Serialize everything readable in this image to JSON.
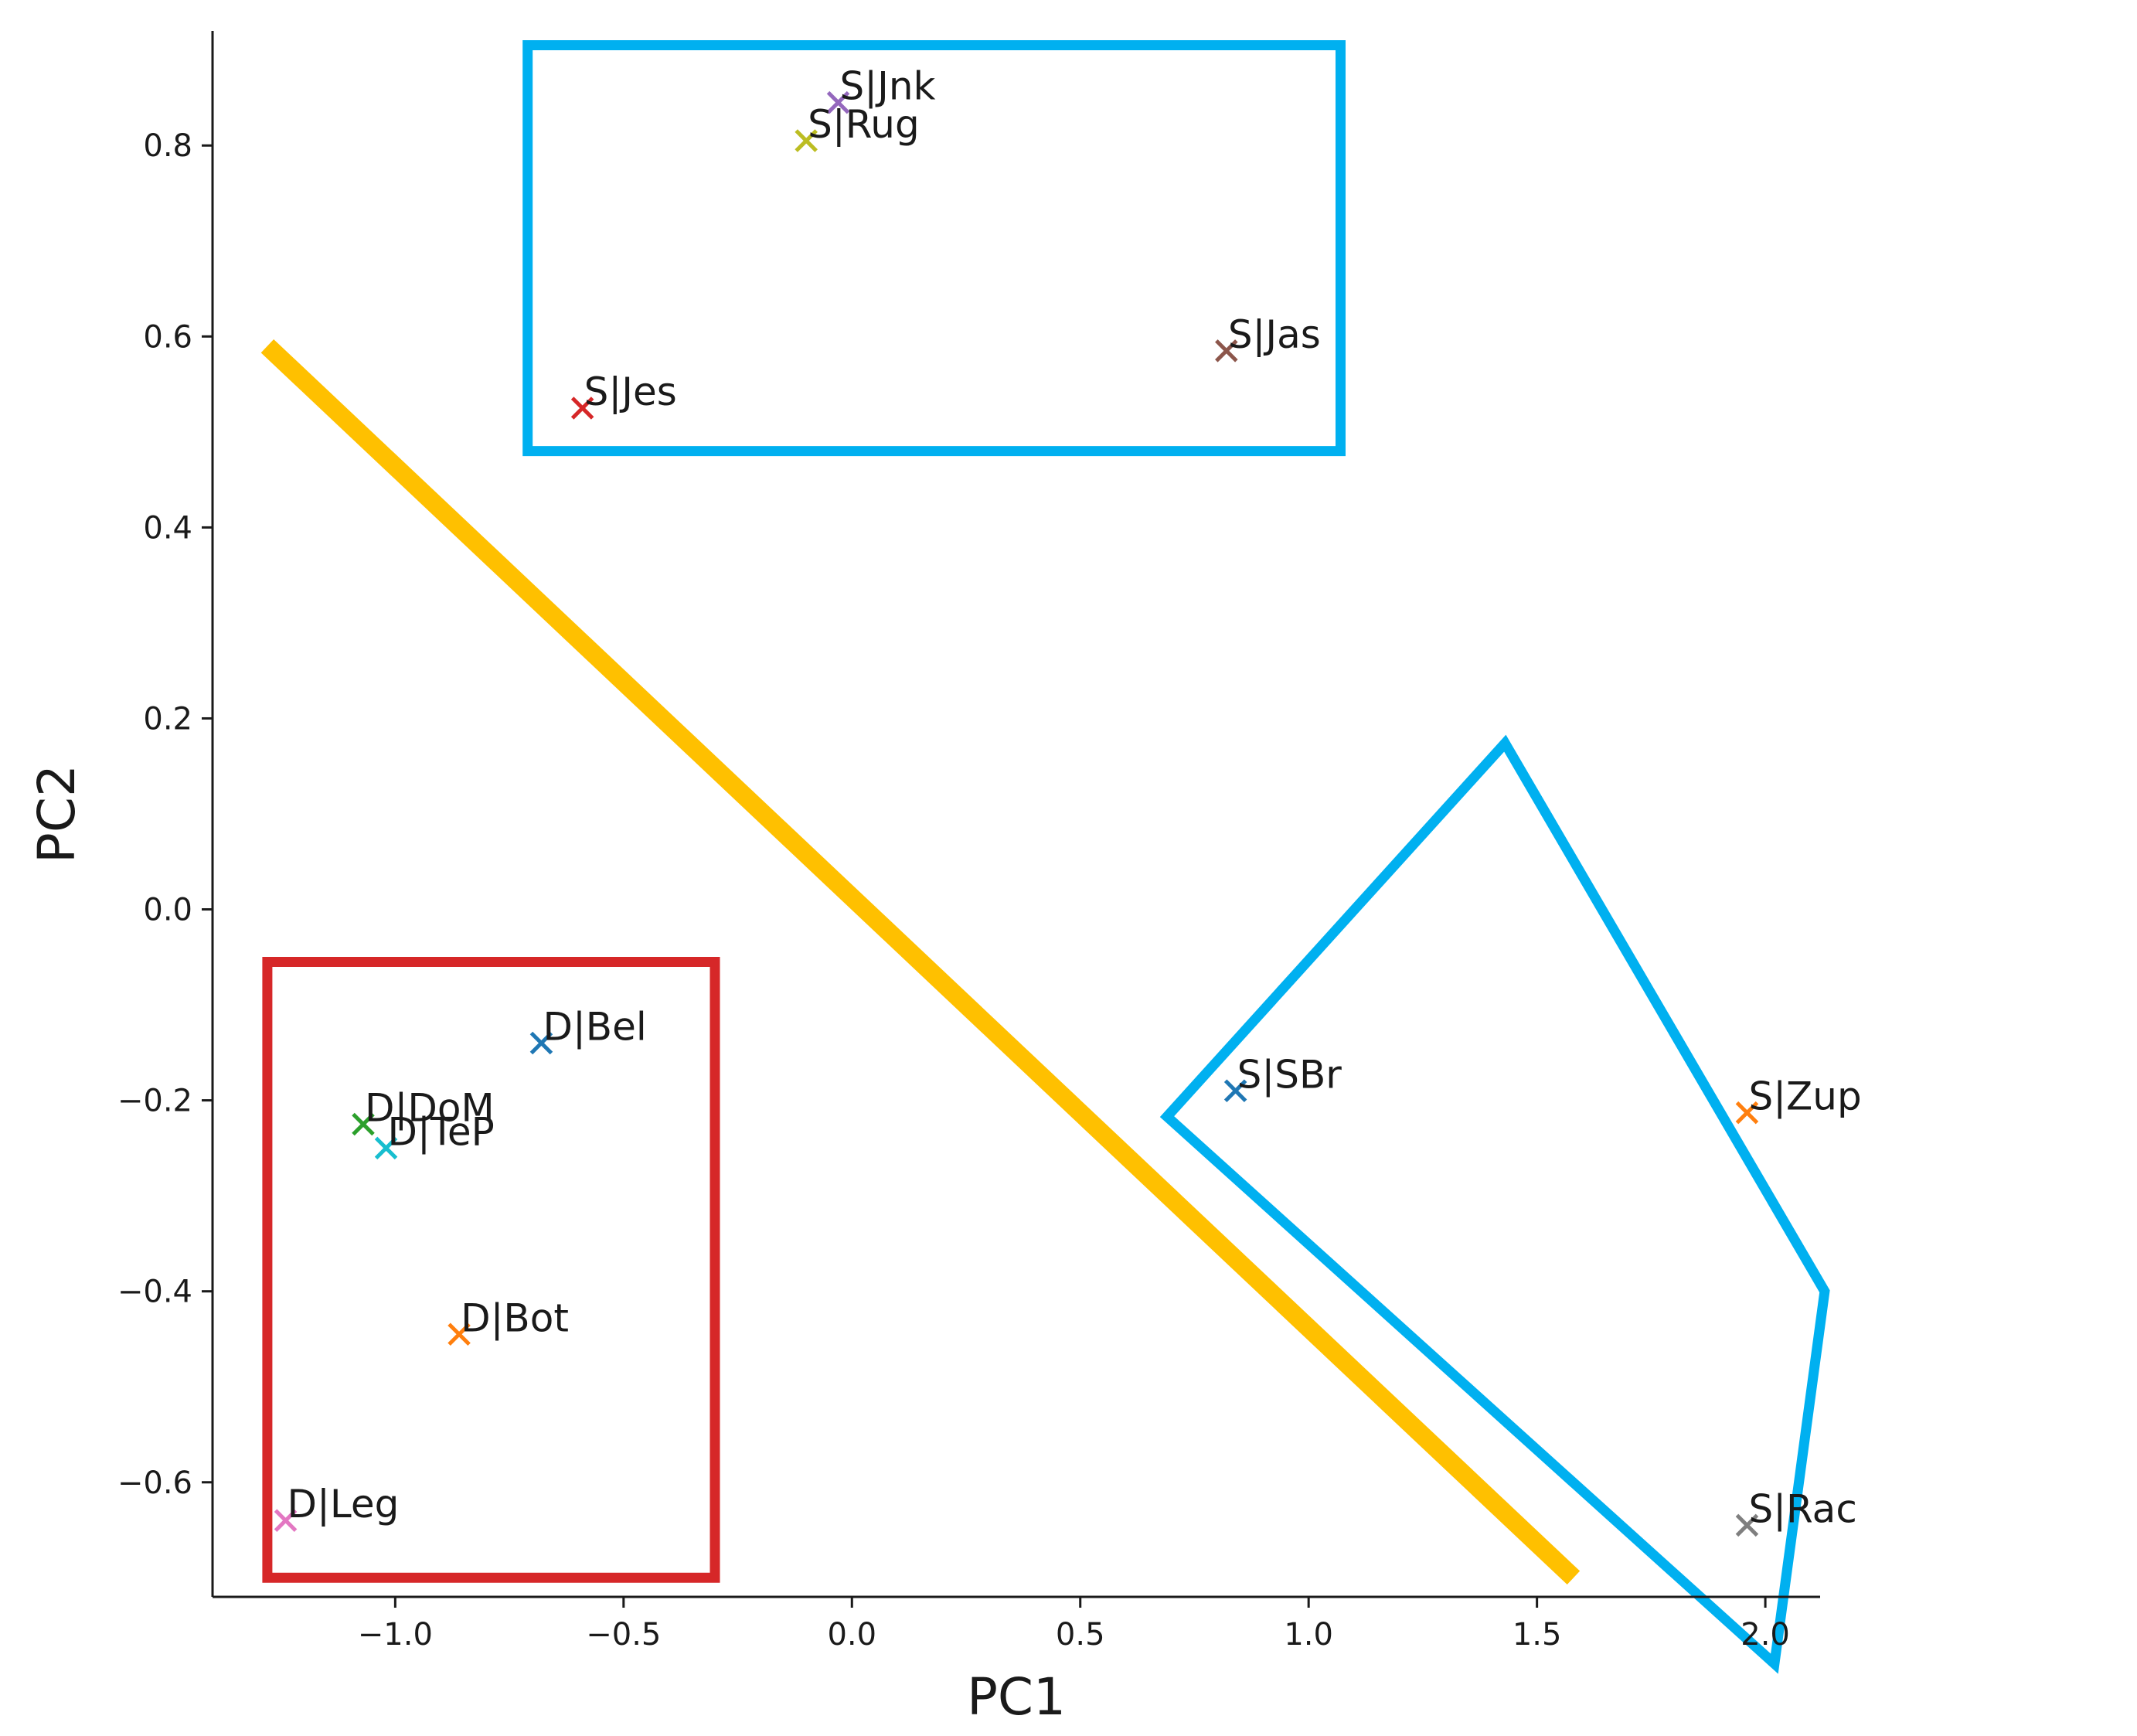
{
  "chart_data": {
    "type": "scatter",
    "title": "",
    "xlabel": "PC1",
    "ylabel": "PC2",
    "xlim": [
      -1.4,
      2.12
    ],
    "ylim": [
      -0.72,
      0.92
    ],
    "x_ticks": [
      -1.0,
      -0.5,
      0.0,
      0.5,
      1.0,
      1.5,
      2.0
    ],
    "x_tick_labels": [
      "−1.0",
      "−0.5",
      "0.0",
      "0.5",
      "1.0",
      "1.5",
      "2.0"
    ],
    "y_ticks": [
      -0.6,
      -0.4,
      -0.2,
      0.0,
      0.2,
      0.4,
      0.6,
      0.8
    ],
    "y_tick_labels": [
      "−0.6",
      "−0.4",
      "−0.2",
      "0.0",
      "0.2",
      "0.4",
      "0.6",
      "0.8"
    ],
    "grid": false,
    "marker": "x",
    "points": [
      {
        "label": "S|Jnk",
        "x": -0.03,
        "y": 0.845,
        "color": "#9467bd"
      },
      {
        "label": "S|Rug",
        "x": -0.1,
        "y": 0.805,
        "color": "#bcbd22"
      },
      {
        "label": "S|Jas",
        "x": 0.82,
        "y": 0.585,
        "color": "#8c564b"
      },
      {
        "label": "S|Jes",
        "x": -0.59,
        "y": 0.525,
        "color": "#d62728"
      },
      {
        "label": "D|Bel",
        "x": -0.68,
        "y": -0.14,
        "color": "#1f77b4"
      },
      {
        "label": "D|DoM",
        "x": -1.07,
        "y": -0.225,
        "color": "#2ca02c"
      },
      {
        "label": "D|TeP",
        "x": -1.02,
        "y": -0.25,
        "color": "#17becf"
      },
      {
        "label": "D|Bot",
        "x": -0.86,
        "y": -0.445,
        "color": "#ff7f0e"
      },
      {
        "label": "D|Leg",
        "x": -1.24,
        "y": -0.64,
        "color": "#e377c2"
      },
      {
        "label": "S|SBr",
        "x": 0.84,
        "y": -0.19,
        "color": "#1f77b4"
      },
      {
        "label": "S|Zup",
        "x": 1.96,
        "y": -0.213,
        "color": "#ff7f0e"
      },
      {
        "label": "S|Rac",
        "x": 1.96,
        "y": -0.645,
        "color": "#7f7f7f"
      }
    ],
    "annotations": [
      {
        "type": "line",
        "color": "#ffc000",
        "from": [
          -1.28,
          0.59
        ],
        "to": [
          1.58,
          -0.7
        ]
      },
      {
        "type": "polygon",
        "color": "#d62728",
        "points": [
          [
            -1.28,
            -0.055
          ],
          [
            -0.3,
            -0.055
          ],
          [
            -0.3,
            -0.7
          ],
          [
            -1.28,
            -0.7
          ]
        ]
      },
      {
        "type": "polygon",
        "color": "#00b0f0",
        "points": [
          [
            -0.71,
            0.905
          ],
          [
            1.07,
            0.905
          ],
          [
            1.07,
            0.48
          ],
          [
            -0.71,
            0.48
          ]
        ]
      },
      {
        "type": "polygon",
        "color": "#00b0f0",
        "points": [
          [
            0.69,
            -0.217
          ],
          [
            1.43,
            0.174
          ],
          [
            2.13,
            -0.4
          ],
          [
            2.02,
            -0.79
          ]
        ]
      }
    ]
  }
}
